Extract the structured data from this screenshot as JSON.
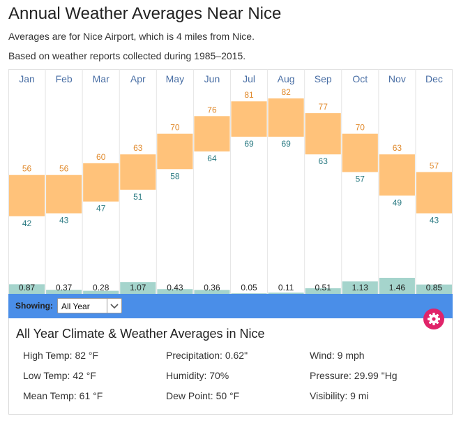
{
  "page": {
    "title": "Annual Weather Averages Near Nice",
    "subtitle1": "Averages are for Nice Airport, which is 4 miles from Nice.",
    "subtitle2": "Based on weather reports collected during 1985–2015."
  },
  "chart_data": {
    "type": "bar",
    "categories": [
      "Jan",
      "Feb",
      "Mar",
      "Apr",
      "May",
      "Jun",
      "Jul",
      "Aug",
      "Sep",
      "Oct",
      "Nov",
      "Dec"
    ],
    "series": [
      {
        "name": "",
        "values": [
          56,
          56,
          60,
          63,
          70,
          76,
          81,
          82,
          77,
          70,
          63,
          57
        ]
      },
      {
        "name": "",
        "values": [
          42,
          43,
          47,
          51,
          58,
          64,
          69,
          69,
          63,
          57,
          49,
          43
        ]
      },
      {
        "name": "",
        "values": [
          0.87,
          0.37,
          0.28,
          1.07,
          0.43,
          0.36,
          0.05,
          0.11,
          0.51,
          1.13,
          1.46,
          0.85
        ]
      }
    ],
    "precip_labels": [
      "0.87",
      "0.37",
      "0.28",
      "1.07",
      "0.43",
      "0.36",
      "0.05",
      "0.11",
      "0.51",
      "1.13",
      "1.46",
      "0.85"
    ],
    "colors": {
      "temp": "#ffc27a",
      "high_text": "#e0892b",
      "low_text": "#2a7a82",
      "precip": "#a5d4cc",
      "month_text": "#4a6fa5"
    }
  },
  "filter": {
    "showing_label": "Showing:",
    "selected": "All Year"
  },
  "summary": {
    "title": "All Year Climate & Weather Averages in Nice",
    "stats": [
      [
        "High Temp: 82 °F",
        "Precipitation: 0.62\"",
        "Wind: 9 mph"
      ],
      [
        "Low Temp: 42 °F",
        "Humidity: 70%",
        "Pressure: 29.99 \"Hg"
      ],
      [
        "Mean Temp: 61 °F",
        "Dew Point: 50 °F",
        "Visibility: 9 mi"
      ]
    ]
  },
  "icons": {
    "settings": "gear-icon",
    "dropdown": "chevron-down-icon"
  }
}
